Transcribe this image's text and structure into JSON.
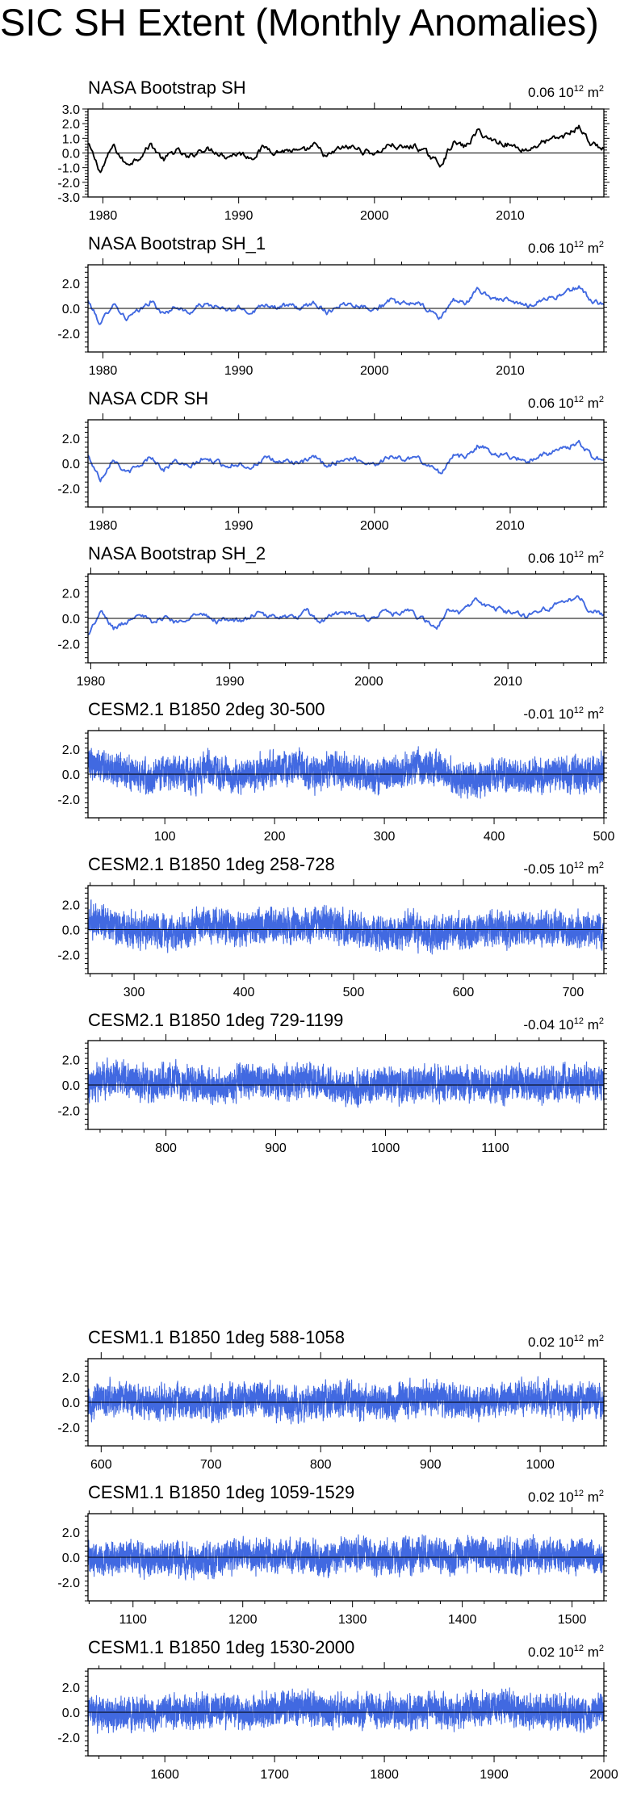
{
  "figure": {
    "title": "SIC SH Extent (Monthly Anomalies)"
  },
  "colors": {
    "black_series": "#000000",
    "blue_series": "#4169e1",
    "axis": "#000000"
  },
  "chart_data": [
    {
      "type": "line",
      "title": "NASA Bootstrap SH",
      "mean_label": "0.06",
      "unit_base": "10",
      "unit_exp": "12",
      "unit_tail": "m",
      "unit_tail_exp": "2",
      "series_color": "#000000",
      "xlim": [
        1978.9,
        2016.9
      ],
      "ylim": [
        -3.0,
        3.0
      ],
      "yticks": [
        3.0,
        2.0,
        1.0,
        0.0,
        -1.0,
        -2.0,
        -3.0
      ],
      "ytick_labels": [
        "3.0",
        "2.0",
        "1.0",
        "0.0",
        "-1.0",
        "-2.0",
        "-3.0"
      ],
      "xticks": [
        1980,
        1990,
        2000,
        2010
      ],
      "xtick_labels": [
        "1980",
        "1990",
        "2000",
        "2010"
      ],
      "x_start": 1978.9,
      "x_step": 0.08333,
      "anchors": [
        0.6,
        -1.3,
        0.5,
        -0.8,
        -0.3,
        0.6,
        -0.5,
        0.2,
        -0.4,
        0.3,
        0.2,
        -0.2,
        0.0,
        -0.3,
        0.4,
        0.1,
        0.2,
        0.0,
        0.5,
        -0.3,
        0.3,
        0.4,
        0.1,
        0.0,
        0.6,
        0.3,
        0.5,
        -0.1,
        -0.8,
        0.7,
        0.4,
        1.5,
        0.9,
        0.7,
        0.4,
        0.2,
        0.7,
        0.9,
        1.2,
        1.8,
        0.6,
        0.3
      ],
      "grid": false,
      "legend": "none"
    },
    {
      "type": "line",
      "title": "NASA Bootstrap SH_1",
      "mean_label": "0.06",
      "unit_base": "10",
      "unit_exp": "12",
      "unit_tail": "m",
      "unit_tail_exp": "2",
      "series_color": "#4169e1",
      "xlim": [
        1978.9,
        2016.9
      ],
      "ylim": [
        -3.5,
        3.5
      ],
      "yticks": [
        2.0,
        0.0,
        -2.0
      ],
      "ytick_labels": [
        "2.0",
        "0.0",
        "-2.0"
      ],
      "xticks": [
        1980,
        1990,
        2000,
        2010
      ],
      "xtick_labels": [
        "1980",
        "1990",
        "2000",
        "2010"
      ],
      "x_start": 1978.9,
      "x_step": 0.08333,
      "anchors": [
        0.6,
        -1.3,
        0.5,
        -0.8,
        -0.3,
        0.6,
        -0.5,
        0.2,
        -0.4,
        0.3,
        0.2,
        -0.2,
        0.0,
        -0.3,
        0.4,
        0.1,
        0.2,
        0.0,
        0.5,
        -0.3,
        0.3,
        0.4,
        0.1,
        0.0,
        0.6,
        0.3,
        0.5,
        -0.1,
        -0.8,
        0.7,
        0.4,
        1.5,
        0.9,
        0.7,
        0.4,
        0.2,
        0.7,
        0.9,
        1.2,
        1.8,
        0.6,
        0.3
      ],
      "grid": false,
      "legend": "none"
    },
    {
      "type": "line",
      "title": "NASA CDR SH",
      "mean_label": "0.06",
      "unit_base": "10",
      "unit_exp": "12",
      "unit_tail": "m",
      "unit_tail_exp": "2",
      "series_color": "#4169e1",
      "xlim": [
        1978.9,
        2016.9
      ],
      "ylim": [
        -3.5,
        3.5
      ],
      "yticks": [
        2.0,
        0.0,
        -2.0
      ],
      "ytick_labels": [
        "2.0",
        "0.0",
        "-2.0"
      ],
      "xticks": [
        1980,
        1990,
        2000,
        2010
      ],
      "xtick_labels": [
        "1980",
        "1990",
        "2000",
        "2010"
      ],
      "x_start": 1978.9,
      "x_step": 0.08333,
      "anchors": [
        0.6,
        -1.3,
        0.5,
        -0.8,
        -0.3,
        0.6,
        -0.5,
        0.2,
        -0.4,
        0.3,
        0.2,
        -0.2,
        0.0,
        -0.3,
        0.4,
        0.1,
        0.2,
        0.0,
        0.5,
        -0.3,
        0.3,
        0.4,
        0.1,
        0.0,
        0.6,
        0.3,
        0.5,
        -0.1,
        -0.8,
        0.7,
        0.4,
        1.5,
        0.9,
        0.7,
        0.4,
        0.2,
        0.7,
        0.9,
        1.2,
        1.8,
        0.6,
        0.3
      ],
      "grid": false,
      "legend": "none"
    },
    {
      "type": "line",
      "title": "NASA Bootstrap SH_2",
      "mean_label": "0.06",
      "unit_base": "10",
      "unit_exp": "12",
      "unit_tail": "m",
      "unit_tail_exp": "2",
      "series_color": "#4169e1",
      "xlim": [
        1979.8,
        2016.9
      ],
      "ylim": [
        -3.5,
        3.5
      ],
      "yticks": [
        2.0,
        0.0,
        -2.0
      ],
      "ytick_labels": [
        "2.0",
        "0.0",
        "-2.0"
      ],
      "xticks": [
        1980,
        1990,
        2000,
        2010
      ],
      "xtick_labels": [
        "1980",
        "1990",
        "2000",
        "2010"
      ],
      "x_start": 1979.8,
      "x_step": 0.08333,
      "anchors": [
        -1.3,
        0.5,
        -0.8,
        -0.3,
        0.6,
        -0.5,
        0.2,
        -0.4,
        0.3,
        0.2,
        -0.2,
        0.0,
        -0.3,
        0.4,
        0.1,
        0.2,
        0.0,
        0.5,
        -0.3,
        0.3,
        0.4,
        0.1,
        0.0,
        0.6,
        0.3,
        0.5,
        -0.1,
        -0.8,
        0.7,
        0.4,
        1.5,
        0.9,
        0.7,
        0.4,
        0.2,
        0.7,
        0.9,
        1.2,
        1.8,
        0.6,
        0.3
      ],
      "grid": false,
      "legend": "none"
    },
    {
      "type": "line",
      "title": "CESM2.1 B1850 2deg 30-500",
      "mean_label": "-0.01",
      "unit_base": "10",
      "unit_exp": "12",
      "unit_tail": "m",
      "unit_tail_exp": "2",
      "series_color": "#4169e1",
      "xlim": [
        30,
        500
      ],
      "ylim": [
        -3.5,
        3.5
      ],
      "yticks": [
        2.0,
        0.0,
        -2.0
      ],
      "ytick_labels": [
        "2.0",
        "0.0",
        "-2.0"
      ],
      "xticks": [
        100,
        200,
        300,
        400,
        500
      ],
      "xtick_labels": [
        "100",
        "200",
        "300",
        "400",
        "500"
      ],
      "x_start": 30,
      "x_step": 0.08333,
      "anchors": [
        0.9,
        0.6,
        0.1,
        -0.3,
        0.2,
        0.0,
        0.4,
        -0.2,
        0.1,
        0.3,
        0.5,
        0.0,
        0.4,
        0.2,
        -0.3,
        0.1,
        0.6,
        0.3,
        -0.4,
        -0.6,
        0.1,
        0.0,
        -0.1,
        0.2,
        0.0,
        0.3
      ],
      "grid": false,
      "legend": "none"
    },
    {
      "type": "line",
      "title": "CESM2.1 B1850 1deg 258-728",
      "mean_label": "-0.05",
      "unit_base": "10",
      "unit_exp": "12",
      "unit_tail": "m",
      "unit_tail_exp": "2",
      "series_color": "#4169e1",
      "xlim": [
        258,
        728
      ],
      "ylim": [
        -3.5,
        3.5
      ],
      "yticks": [
        2.0,
        0.0,
        -2.0
      ],
      "ytick_labels": [
        "2.0",
        "0.0",
        "-2.0"
      ],
      "xticks": [
        300,
        400,
        500,
        600,
        700
      ],
      "xtick_labels": [
        "300",
        "400",
        "500",
        "600",
        "700"
      ],
      "x_start": 258,
      "x_step": 0.08333,
      "anchors": [
        0.9,
        0.3,
        -0.2,
        0.1,
        -0.3,
        0.2,
        0.4,
        0.1,
        0.3,
        0.5,
        0.2,
        0.6,
        0.2,
        -0.2,
        -0.4,
        0.1,
        -0.5,
        0.0,
        -0.3,
        0.2,
        -0.1,
        0.1,
        0.3,
        0.0,
        -0.2
      ],
      "grid": false,
      "legend": "none"
    },
    {
      "type": "line",
      "title": "CESM2.1 B1850 1deg 729-1199",
      "mean_label": "-0.04",
      "unit_base": "10",
      "unit_exp": "12",
      "unit_tail": "m",
      "unit_tail_exp": "2",
      "series_color": "#4169e1",
      "xlim": [
        729,
        1199
      ],
      "ylim": [
        -3.5,
        3.5
      ],
      "yticks": [
        2.0,
        0.0,
        -2.0
      ],
      "ytick_labels": [
        "2.0",
        "0.0",
        "-2.0"
      ],
      "xticks": [
        800,
        900,
        1000,
        1100
      ],
      "xtick_labels": [
        "800",
        "900",
        "1000",
        "1100"
      ],
      "x_start": 729,
      "x_step": 0.08333,
      "anchors": [
        0.2,
        0.5,
        0.3,
        0.1,
        0.4,
        0.0,
        -0.1,
        0.2,
        0.3,
        0.1,
        0.5,
        0.2,
        -0.3,
        0.0,
        0.1,
        -0.1,
        0.2,
        0.0,
        0.1,
        -0.2,
        0.2,
        0.0,
        0.1,
        0.3,
        0.2
      ],
      "grid": false,
      "legend": "none"
    },
    {
      "type": "line",
      "title": "CESM1.1 B1850 1deg 588-1058",
      "mean_label": "0.02",
      "unit_base": "10",
      "unit_exp": "12",
      "unit_tail": "m",
      "unit_tail_exp": "2",
      "series_color": "#4169e1",
      "xlim": [
        588,
        1058
      ],
      "ylim": [
        -3.5,
        3.5
      ],
      "yticks": [
        2.0,
        0.0,
        -2.0
      ],
      "ytick_labels": [
        "2.0",
        "0.0",
        "-2.0"
      ],
      "xticks": [
        600,
        700,
        800,
        900,
        1000
      ],
      "xtick_labels": [
        "600",
        "700",
        "800",
        "900",
        "1000"
      ],
      "x_start": 588,
      "x_step": 0.08333,
      "anchors": [
        0.1,
        0.4,
        0.2,
        -0.1,
        0.1,
        0.0,
        -0.2,
        0.2,
        0.3,
        0.0,
        -0.3,
        0.1,
        0.2,
        -0.1,
        0.0,
        0.3,
        0.4,
        0.1,
        -0.2,
        0.2,
        0.5,
        0.3,
        0.1,
        0.2,
        0.0
      ],
      "grid": false,
      "legend": "none"
    },
    {
      "type": "line",
      "title": "CESM1.1 B1850 1deg 1059-1529",
      "mean_label": "0.02",
      "unit_base": "10",
      "unit_exp": "12",
      "unit_tail": "m",
      "unit_tail_exp": "2",
      "series_color": "#4169e1",
      "xlim": [
        1059,
        1529
      ],
      "ylim": [
        -3.5,
        3.5
      ],
      "yticks": [
        2.0,
        0.0,
        -2.0
      ],
      "ytick_labels": [
        "2.0",
        "0.0",
        "-2.0"
      ],
      "xticks": [
        1100,
        1200,
        1300,
        1400,
        1500
      ],
      "xtick_labels": [
        "1100",
        "1200",
        "1300",
        "1400",
        "1500"
      ],
      "x_start": 1059,
      "x_step": 0.08333,
      "anchors": [
        0.0,
        -0.2,
        0.1,
        -0.3,
        0.0,
        -0.4,
        -0.2,
        0.1,
        0.0,
        0.2,
        0.1,
        -0.1,
        0.3,
        0.2,
        0.0,
        0.2,
        0.4,
        0.1,
        0.3,
        0.2,
        0.0,
        0.3,
        0.1,
        0.2,
        0.1
      ],
      "grid": false,
      "legend": "none"
    },
    {
      "type": "line",
      "title": "CESM1.1 B1850 1deg 1530-2000",
      "mean_label": "0.02",
      "unit_base": "10",
      "unit_exp": "12",
      "unit_tail": "m",
      "unit_tail_exp": "2",
      "series_color": "#4169e1",
      "xlim": [
        1530,
        2000
      ],
      "ylim": [
        -3.5,
        3.5
      ],
      "yticks": [
        2.0,
        0.0,
        -2.0
      ],
      "ytick_labels": [
        "2.0",
        "0.0",
        "-2.0"
      ],
      "xticks": [
        1600,
        1700,
        1800,
        1900,
        2000
      ],
      "xtick_labels": [
        "1600",
        "1700",
        "1800",
        "1900",
        "2000"
      ],
      "x_start": 1530,
      "x_step": 0.08333,
      "anchors": [
        -0.1,
        -0.3,
        0.0,
        -0.2,
        0.1,
        0.0,
        0.2,
        -0.1,
        0.1,
        0.3,
        0.5,
        0.2,
        0.0,
        0.3,
        0.1,
        -0.1,
        0.2,
        0.0,
        0.3,
        0.5,
        0.2,
        0.1,
        0.0,
        -0.1,
        0.1
      ],
      "grid": false,
      "legend": "none"
    }
  ]
}
